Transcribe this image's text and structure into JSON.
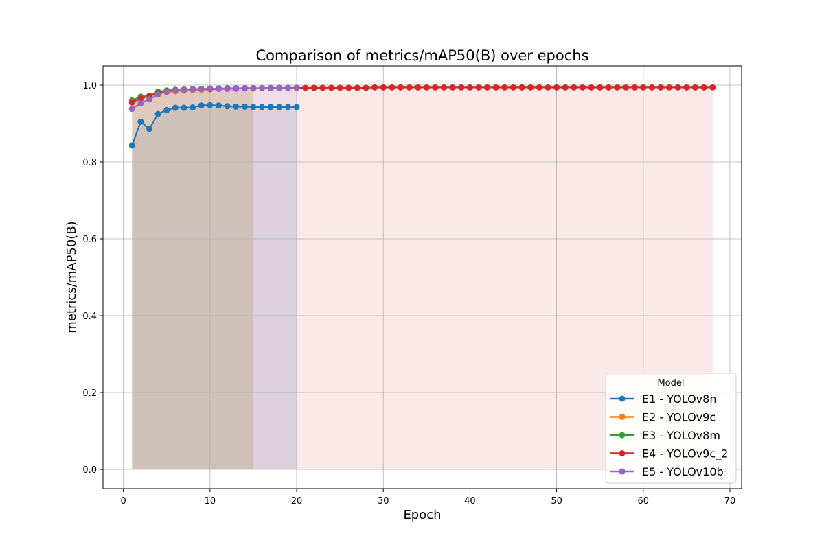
{
  "chart_data": {
    "type": "line",
    "title": "Comparison of metrics/mAP50(B) over epochs",
    "xlabel": "Epoch",
    "ylabel": "metrics/mAP50(B)",
    "xlim": [
      -2.35,
      71.35
    ],
    "ylim": [
      -0.05,
      1.05
    ],
    "xticks": [
      0,
      10,
      20,
      30,
      40,
      50,
      60,
      70
    ],
    "yticks": [
      0.0,
      0.2,
      0.4,
      0.6,
      0.8,
      1.0
    ],
    "grid": true,
    "legend": {
      "title": "Model",
      "placement": "lower right"
    },
    "series": [
      {
        "name": "E1 - YOLOv8n",
        "color": "#1f77b4",
        "x": [
          1,
          2,
          3,
          4,
          5,
          6,
          7,
          8,
          9,
          10,
          11,
          12,
          13,
          14,
          15,
          16,
          17,
          18,
          19,
          20
        ],
        "values": [
          0.843,
          0.905,
          0.886,
          0.925,
          0.935,
          0.941,
          0.941,
          0.942,
          0.947,
          0.948,
          0.947,
          0.945,
          0.944,
          0.944,
          0.943,
          0.943,
          0.943,
          0.943,
          0.943,
          0.943
        ]
      },
      {
        "name": "E2 - YOLOv9c",
        "color": "#ff7f0e",
        "x": [
          1,
          2,
          3,
          4,
          5,
          6,
          7,
          8,
          9,
          10,
          11,
          12,
          13,
          14,
          15
        ],
        "values": [
          0.955,
          0.965,
          0.972,
          0.978,
          0.982,
          0.984,
          0.986,
          0.987,
          0.988,
          0.989,
          0.99,
          0.99,
          0.991,
          0.991,
          0.991
        ]
      },
      {
        "name": "E3 - YOLOv8m",
        "color": "#2ca02c",
        "x": [
          1,
          2,
          3,
          4,
          5,
          6,
          7,
          8,
          9,
          10,
          11,
          12,
          13,
          14,
          15
        ],
        "values": [
          0.96,
          0.97,
          0.972,
          0.983,
          0.986,
          0.988,
          0.989,
          0.99,
          0.99,
          0.991,
          0.991,
          0.992,
          0.992,
          0.992,
          0.992
        ]
      },
      {
        "name": "E4 - YOLOv9c_2",
        "color": "#d62728",
        "x": [
          1,
          2,
          3,
          4,
          5,
          6,
          7,
          8,
          9,
          10,
          11,
          12,
          13,
          14,
          15,
          16,
          17,
          18,
          19,
          20,
          21,
          22,
          23,
          24,
          25,
          26,
          27,
          28,
          29,
          30,
          31,
          32,
          33,
          34,
          35,
          36,
          37,
          38,
          39,
          40,
          41,
          42,
          43,
          44,
          45,
          46,
          47,
          48,
          49,
          50,
          51,
          52,
          53,
          54,
          55,
          56,
          57,
          58,
          59,
          60,
          61,
          62,
          63,
          64,
          65,
          66,
          67,
          68
        ],
        "values": [
          0.955,
          0.965,
          0.972,
          0.979,
          0.984,
          0.986,
          0.988,
          0.989,
          0.99,
          0.99,
          0.991,
          0.991,
          0.991,
          0.992,
          0.992,
          0.992,
          0.992,
          0.993,
          0.993,
          0.993,
          0.993,
          0.993,
          0.993,
          0.993,
          0.993,
          0.993,
          0.993,
          0.993,
          0.994,
          0.994,
          0.994,
          0.994,
          0.994,
          0.994,
          0.994,
          0.994,
          0.994,
          0.994,
          0.994,
          0.994,
          0.994,
          0.994,
          0.994,
          0.994,
          0.994,
          0.994,
          0.994,
          0.994,
          0.994,
          0.994,
          0.994,
          0.994,
          0.994,
          0.994,
          0.994,
          0.994,
          0.994,
          0.994,
          0.994,
          0.994,
          0.994,
          0.994,
          0.994,
          0.994,
          0.994,
          0.994,
          0.994,
          0.994
        ]
      },
      {
        "name": "E5 - YOLOv10b",
        "color": "#9467bd",
        "x": [
          1,
          2,
          3,
          4,
          5,
          6,
          7,
          8,
          9,
          10,
          11,
          12,
          13,
          14,
          15,
          16,
          17,
          18,
          19,
          20
        ],
        "values": [
          0.938,
          0.953,
          0.963,
          0.976,
          0.983,
          0.986,
          0.988,
          0.989,
          0.99,
          0.991,
          0.991,
          0.991,
          0.992,
          0.992,
          0.992,
          0.992,
          0.993,
          0.993,
          0.993,
          0.993
        ]
      }
    ]
  }
}
